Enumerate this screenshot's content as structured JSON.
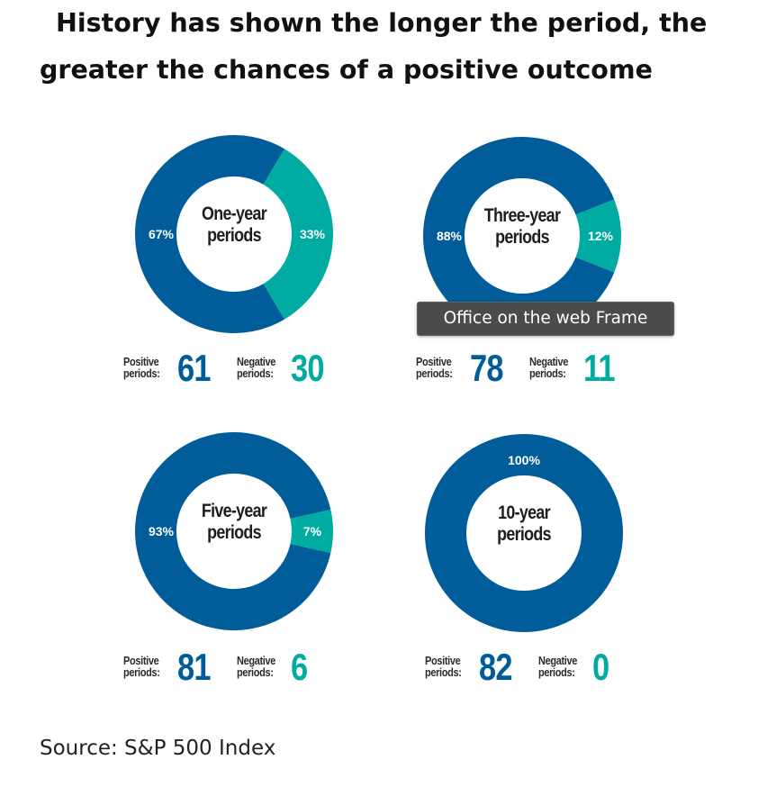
{
  "headline": {
    "line1": "History has shown the longer the period, the",
    "line2": "greater the chances of a positive outcome"
  },
  "colors": {
    "positive": "#005d9a",
    "negative": "#00aba2",
    "label_on_fill": "#ffffff",
    "center_text": "#1d1d1d"
  },
  "chart_data": [
    {
      "type": "pie",
      "center_label": [
        "One-year",
        "periods"
      ],
      "categories": [
        "Positive",
        "Negative"
      ],
      "values": [
        67,
        33
      ],
      "value_labels": [
        "67%",
        "33%"
      ],
      "counts": {
        "positive_label": [
          "Positive",
          "periods:"
        ],
        "positive": "61",
        "negative_label": [
          "Negative",
          "periods:"
        ],
        "negative": "30"
      }
    },
    {
      "type": "pie",
      "center_label": [
        "Three-year",
        "periods"
      ],
      "categories": [
        "Positive",
        "Negative"
      ],
      "values": [
        88,
        12
      ],
      "value_labels": [
        "88%",
        "12%"
      ],
      "counts": {
        "positive_label": [
          "Positive",
          "periods:"
        ],
        "positive": "78",
        "negative_label": [
          "Negative",
          "periods:"
        ],
        "negative": "11"
      }
    },
    {
      "type": "pie",
      "center_label": [
        "Five-year",
        "periods"
      ],
      "categories": [
        "Positive",
        "Negative"
      ],
      "values": [
        93,
        7
      ],
      "value_labels": [
        "93%",
        "7%"
      ],
      "counts": {
        "positive_label": [
          "Positive",
          "periods:"
        ],
        "positive": "81",
        "negative_label": [
          "Negative",
          "periods:"
        ],
        "negative": "6"
      }
    },
    {
      "type": "pie",
      "center_label": [
        "10-year",
        "periods"
      ],
      "categories": [
        "Positive",
        "Negative"
      ],
      "values": [
        100,
        0
      ],
      "value_labels": [
        "100%",
        ""
      ],
      "counts": {
        "positive_label": [
          "Positive",
          "periods:"
        ],
        "positive": "82",
        "negative_label": [
          "Negative",
          "periods:"
        ],
        "negative": "0"
      }
    }
  ],
  "tooltip": {
    "text": "Office on the web Frame"
  },
  "source": "Source: S&P 500 Index"
}
